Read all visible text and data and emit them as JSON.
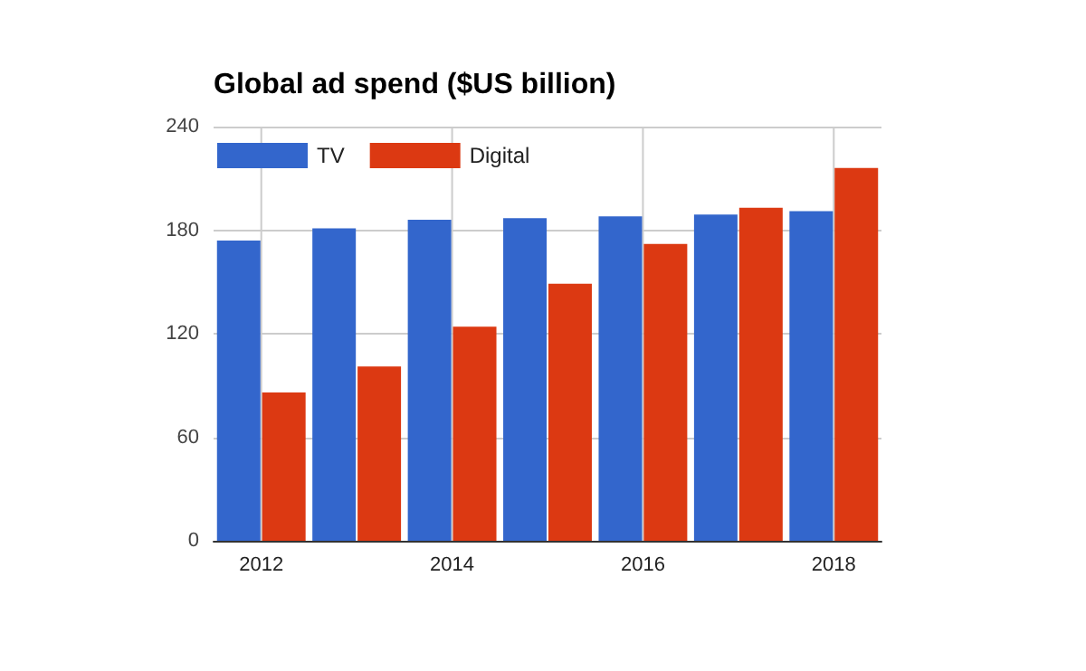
{
  "chart_data": {
    "type": "bar",
    "title": "Global ad spend ($US billion)",
    "categories": [
      "2012",
      null,
      "2014",
      null,
      "2016",
      null,
      "2018"
    ],
    "series": [
      {
        "name": "TV",
        "color": "#3366cc",
        "values": [
          174,
          181,
          186,
          187,
          188,
          189,
          191
        ]
      },
      {
        "name": "Digital",
        "color": "#dc3912",
        "values": [
          86,
          101,
          124,
          149,
          172,
          193,
          216
        ]
      }
    ],
    "ylim": [
      0,
      240
    ],
    "yticks": [
      0,
      60,
      120,
      180,
      240
    ],
    "grid": true,
    "legend": "top left"
  }
}
